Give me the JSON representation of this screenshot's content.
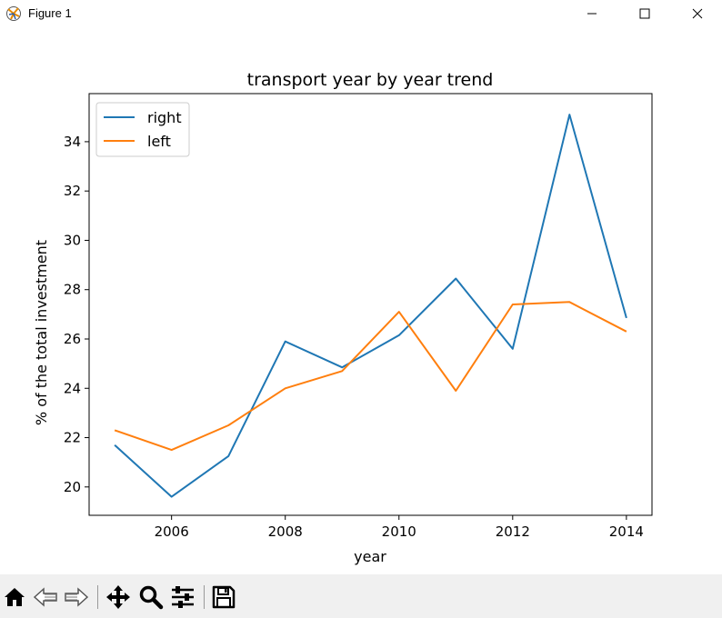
{
  "window": {
    "title": "Figure 1"
  },
  "toolbar": {
    "buttons": [
      {
        "name": "home",
        "icon": "home-icon"
      },
      {
        "name": "back",
        "icon": "back-arrow-icon"
      },
      {
        "name": "forward",
        "icon": "forward-arrow-icon"
      },
      {
        "name": "pan",
        "icon": "move-icon"
      },
      {
        "name": "zoom",
        "icon": "zoom-icon"
      },
      {
        "name": "configure",
        "icon": "sliders-icon"
      },
      {
        "name": "save",
        "icon": "save-icon"
      }
    ]
  },
  "chart_data": {
    "type": "line",
    "title": "transport year by year trend",
    "xlabel": "year",
    "ylabel": "% of the total investment",
    "x": [
      2005,
      2006,
      2007,
      2008,
      2009,
      2010,
      2011,
      2012,
      2013,
      2014
    ],
    "xticks": [
      2006,
      2008,
      2010,
      2012,
      2014
    ],
    "yticks": [
      20,
      22,
      24,
      26,
      28,
      30,
      32,
      34
    ],
    "xlim": [
      2004.55,
      2014.45
    ],
    "ylim": [
      18.85,
      35.95
    ],
    "legend_position": "upper left",
    "series": [
      {
        "name": "right",
        "color": "#1f77b4",
        "values": [
          21.7,
          19.6,
          21.25,
          25.9,
          24.85,
          26.15,
          28.45,
          25.6,
          35.1,
          26.85
        ]
      },
      {
        "name": "left",
        "color": "#ff7f0e",
        "values": [
          22.3,
          21.5,
          22.5,
          24.0,
          24.7,
          27.1,
          23.9,
          27.4,
          27.5,
          26.3
        ]
      }
    ]
  }
}
